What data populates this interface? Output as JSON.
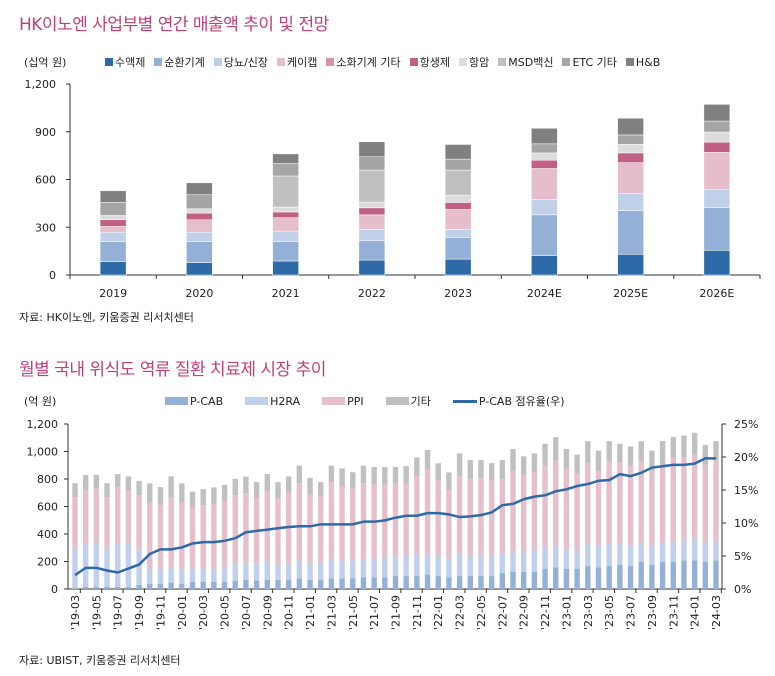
{
  "chart_data": [
    {
      "type": "bar",
      "stacked": true,
      "title": "HK이노엔 사업부별 연간 매출액 추이 및 전망",
      "unit_label": "(십억 원)",
      "source": "자료: HK이노엔, 키움증권 리서치센터",
      "categories": [
        "2019",
        "2020",
        "2021",
        "2022",
        "2023",
        "2024E",
        "2025E",
        "2026E"
      ],
      "ylim": [
        0,
        1200
      ],
      "yticks": [
        0,
        300,
        600,
        900,
        1200
      ],
      "ytick_labels": [
        "0",
        "300",
        "600",
        "900",
        "1,200"
      ],
      "legend_position": "top",
      "grid": false,
      "series": [
        {
          "name": "수액제",
          "color": "#2e6aa8",
          "values": [
            84,
            78,
            88,
            94,
            100,
            121,
            130,
            155
          ]
        },
        {
          "name": "순환기계",
          "color": "#94b0d6",
          "values": [
            126,
            132,
            121,
            121,
            134,
            257,
            274,
            268
          ]
        },
        {
          "name": "당뇨/신장",
          "color": "#bfd0e8",
          "values": [
            59,
            59,
            67,
            71,
            52,
            96,
            107,
            113
          ]
        },
        {
          "name": "케이캡",
          "color": "#e6bdcb",
          "values": [
            36,
            78,
            84,
            92,
            126,
            195,
            195,
            234
          ]
        },
        {
          "name": "소화기계 기타",
          "color": "#d693a9",
          "values": [
            0,
            0,
            0,
            0,
            0,
            0,
            0,
            0
          ]
        },
        {
          "name": "항생제",
          "color": "#c06084",
          "values": [
            42,
            42,
            36,
            44,
            44,
            52,
            61,
            65
          ]
        },
        {
          "name": "항암",
          "color": "#dcdcdc",
          "values": [
            27,
            27,
            31,
            36,
            46,
            46,
            54,
            63
          ]
        },
        {
          "name": "MSD백신",
          "color": "#c0c0c0",
          "values": [
            0,
            0,
            195,
            201,
            157,
            0,
            0,
            0
          ]
        },
        {
          "name": "ETC 기타",
          "color": "#a5a5a5",
          "values": [
            82,
            88,
            80,
            84,
            69,
            57,
            59,
            69
          ]
        },
        {
          "name": "H&B",
          "color": "#808080",
          "values": [
            73,
            75,
            59,
            94,
            92,
            98,
            105,
            105
          ]
        }
      ]
    },
    {
      "type": "bar+line",
      "stacked": true,
      "title": "월별 국내 위식도 역류 질환 치료제 시장 추이",
      "unit_label": "(억 원)",
      "source": "자료: UBIST, 키움증권 리서치센터",
      "x_start": "2019-03",
      "x_end": "2024-03",
      "x_tick_labels": [
        "'19-03",
        "'19-05",
        "'19-07",
        "'19-09",
        "'19-11",
        "'20-01",
        "'20-03",
        "'20-05",
        "'20-07",
        "'20-09",
        "'20-11",
        "'21-01",
        "'21-03",
        "'21-05",
        "'21-07",
        "'21-09",
        "'21-11",
        "'22-01",
        "'22-03",
        "'22-05",
        "'22-07",
        "'22-09",
        "'22-11",
        "'23-01",
        "'23-03",
        "'23-05",
        "'23-07",
        "'23-09",
        "'23-11",
        "'24-01",
        "'24-03"
      ],
      "ylim": [
        0,
        1200
      ],
      "yticks": [
        0,
        200,
        400,
        600,
        800,
        1000,
        1200
      ],
      "ytick_labels": [
        "0",
        "200",
        "400",
        "600",
        "800",
        "1,000",
        "1,200"
      ],
      "y2lim": [
        0,
        25
      ],
      "y2ticks": [
        0,
        5,
        10,
        15,
        20,
        25
      ],
      "y2tick_labels": [
        "0%",
        "5%",
        "10%",
        "15%",
        "20%",
        "25%"
      ],
      "legend_position": "top",
      "grid": false,
      "series": [
        {
          "name": "P-CAB",
          "color": "#95b0d6",
          "values": [
            5,
            15,
            15,
            15,
            15,
            15,
            29,
            36,
            36,
            48,
            36,
            53,
            53,
            53,
            53,
            61,
            65,
            61,
            68,
            65,
            65,
            78,
            65,
            65,
            78,
            78,
            78,
            85,
            85,
            85,
            94,
            94,
            94,
            107,
            94,
            85,
            94,
            94,
            94,
            94,
            116,
            126,
            126,
            126,
            148,
            157,
            148,
            148,
            167,
            157,
            167,
            177,
            167,
            196,
            177,
            196,
            196,
            208,
            208,
            196,
            208
          ]
        },
        {
          "name": "H2RA",
          "color": "#c0d0e8",
          "values": [
            291,
            317,
            325,
            281,
            317,
            317,
            259,
            114,
            102,
            109,
            114,
            97,
            97,
            97,
            109,
            119,
            126,
            119,
            136,
            116,
            116,
            131,
            126,
            126,
            143,
            131,
            131,
            136,
            136,
            145,
            136,
            145,
            155,
            143,
            145,
            136,
            165,
            145,
            155,
            145,
            143,
            153,
            143,
            153,
            150,
            153,
            141,
            131,
            160,
            160,
            160,
            150,
            150,
            143,
            141,
            143,
            153,
            150,
            160,
            143,
            141
          ]
        },
        {
          "name": "PPI",
          "color": "#e6bfcc",
          "values": [
            371,
            388,
            393,
            371,
            407,
            388,
            395,
            480,
            472,
            509,
            480,
            439,
            460,
            468,
            475,
            502,
            506,
            482,
            506,
            477,
            519,
            560,
            497,
            477,
            557,
            540,
            521,
            548,
            540,
            531,
            538,
            528,
            572,
            620,
            550,
            499,
            562,
            560,
            557,
            550,
            540,
            579,
            560,
            569,
            601,
            628,
            582,
            560,
            591,
            540,
            603,
            591,
            582,
            591,
            540,
            560,
            606,
            601,
            611,
            567,
            586
          ]
        },
        {
          "name": "기타",
          "color": "#c0c0c0",
          "values": [
            102,
            109,
            97,
            102,
            97,
            99,
            104,
            138,
            131,
            153,
            138,
            119,
            116,
            121,
            119,
            119,
            121,
            116,
            126,
            119,
            119,
            128,
            121,
            109,
            119,
            128,
            119,
            128,
            126,
            126,
            119,
            128,
            136,
            141,
            126,
            128,
            165,
            138,
            131,
            126,
            138,
            160,
            136,
            138,
            157,
            167,
            148,
            138,
            157,
            148,
            145,
            138,
            138,
            145,
            148,
            177,
            150,
            157,
            157,
            141,
            141
          ]
        },
        {
          "name": "P-CAB 점유율(우)",
          "color": "#2e6aa8",
          "axis": "right",
          "unit": "%",
          "values": [
            2.1,
            3.2,
            3.2,
            2.8,
            2.5,
            3.1,
            3.7,
            5.3,
            6.0,
            6.0,
            6.3,
            6.9,
            7.1,
            7.1,
            7.3,
            7.7,
            8.6,
            8.8,
            9.0,
            9.2,
            9.4,
            9.5,
            9.5,
            9.8,
            9.8,
            9.8,
            9.8,
            10.2,
            10.2,
            10.4,
            10.8,
            11.1,
            11.1,
            11.5,
            11.5,
            11.3,
            10.9,
            11.0,
            11.2,
            11.6,
            12.7,
            12.9,
            13.6,
            14.0,
            14.2,
            14.8,
            15.1,
            15.6,
            15.9,
            16.4,
            16.5,
            17.4,
            17.1,
            17.6,
            18.4,
            18.6,
            18.8,
            18.8,
            19.0,
            19.8,
            19.8
          ]
        }
      ]
    }
  ]
}
